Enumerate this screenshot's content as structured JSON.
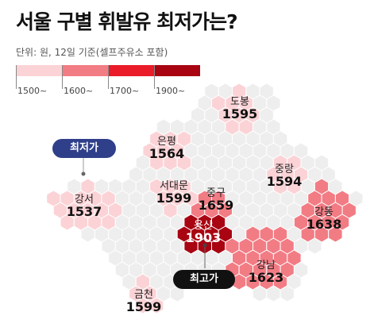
{
  "title": "서울 구별 휘발유 최저가는?",
  "subtitle": "단위: 원, 12일 기준(셀프주유소 포함)",
  "colors": {
    "bg": "#ffffff",
    "base_hex": "#eeeeee",
    "base_outline": "#c9c9c9",
    "lowest_badge": "#2f3f8a",
    "highest_badge": "#111111"
  },
  "legend": {
    "items": [
      {
        "label": "1500~",
        "color": "#fbd3d6"
      },
      {
        "label": "1600~",
        "color": "#f27c84"
      },
      {
        "label": "1700~",
        "color": "#ea1c29"
      },
      {
        "label": "1900~",
        "color": "#a80412"
      }
    ]
  },
  "badges": {
    "lowest": "최저가",
    "highest": "최고가"
  },
  "districts": [
    {
      "name": "도봉",
      "value": "1595"
    },
    {
      "name": "은평",
      "value": "1564"
    },
    {
      "name": "중랑",
      "value": "1594"
    },
    {
      "name": "서대문",
      "value": "1599"
    },
    {
      "name": "중구",
      "value": "1659"
    },
    {
      "name": "강서",
      "value": "1537"
    },
    {
      "name": "강동",
      "value": "1638"
    },
    {
      "name": "용산",
      "value": "1903"
    },
    {
      "name": "강남",
      "value": "1623"
    },
    {
      "name": "금천",
      "value": "1599"
    }
  ]
}
